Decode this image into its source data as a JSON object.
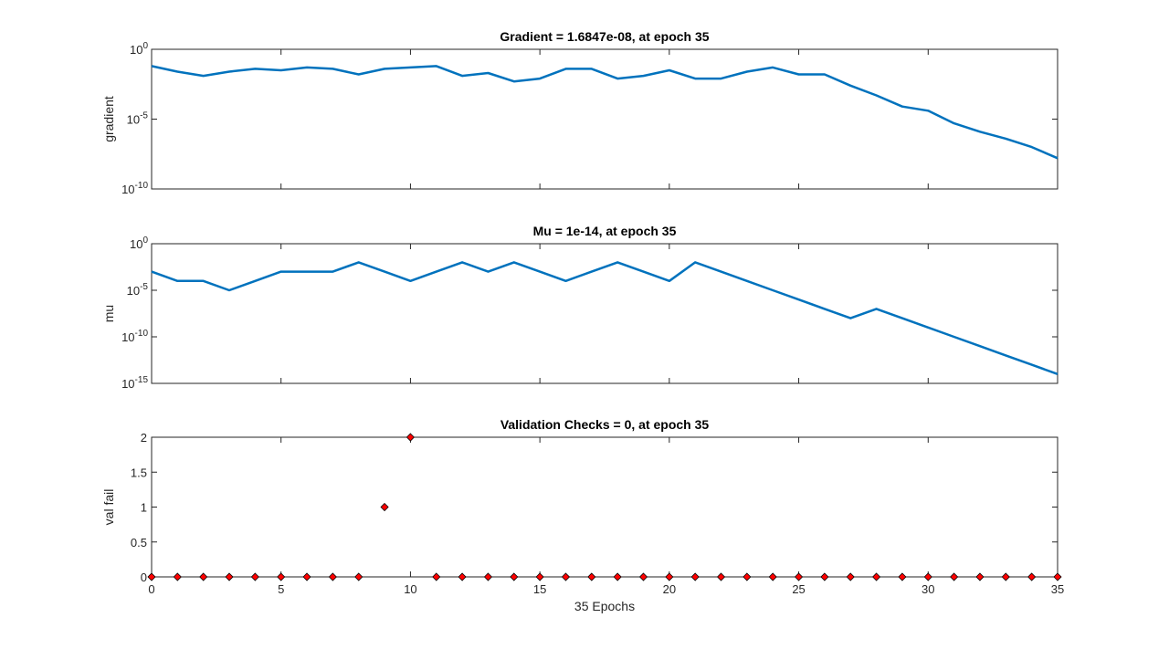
{
  "colors": {
    "line": "#0072BD",
    "marker_fill": "#FF0000",
    "marker_edge": "#000000",
    "axis": "#262626",
    "background": "#FFFFFF"
  },
  "xlabel": "35 Epochs",
  "chart_data": [
    {
      "type": "line",
      "title": "Gradient = 1.6847e-08, at epoch 35",
      "ylabel": "gradient",
      "yscale": "log",
      "ylim_exp": [
        -10,
        0
      ],
      "ytick_exps": [
        0,
        -5,
        -10
      ],
      "xlim": [
        0,
        35
      ],
      "x": [
        0,
        1,
        2,
        3,
        4,
        5,
        6,
        7,
        8,
        9,
        10,
        11,
        12,
        13,
        14,
        15,
        16,
        17,
        18,
        19,
        20,
        21,
        22,
        23,
        24,
        25,
        26,
        27,
        28,
        29,
        30,
        31,
        32,
        33,
        34,
        35
      ],
      "log10_values": [
        -1.2,
        -1.6,
        -1.9,
        -1.6,
        -1.4,
        -1.5,
        -1.3,
        -1.4,
        -1.8,
        -1.4,
        -1.3,
        -1.2,
        -1.9,
        -1.7,
        -2.3,
        -2.1,
        -1.4,
        -1.4,
        -2.1,
        -1.9,
        -1.5,
        -2.1,
        -2.1,
        -1.6,
        -1.3,
        -1.8,
        -1.8,
        -2.6,
        -3.3,
        -4.1,
        -4.4,
        -5.3,
        -5.9,
        -6.4,
        -7.0,
        -7.8
      ]
    },
    {
      "type": "line",
      "title": "Mu = 1e-14, at epoch 35",
      "ylabel": "mu",
      "yscale": "log",
      "ylim_exp": [
        -15,
        0
      ],
      "ytick_exps": [
        0,
        -5,
        -10,
        -15
      ],
      "xlim": [
        0,
        35
      ],
      "x": [
        0,
        1,
        2,
        3,
        4,
        5,
        6,
        7,
        8,
        9,
        10,
        11,
        12,
        13,
        14,
        15,
        16,
        17,
        18,
        19,
        20,
        21,
        22,
        23,
        24,
        25,
        26,
        27,
        28,
        29,
        30,
        31,
        32,
        33,
        34,
        35
      ],
      "log10_values": [
        -3,
        -4,
        -4,
        -5,
        -4,
        -3,
        -3,
        -3,
        -2,
        -3,
        -4,
        -3,
        -2,
        -3,
        -2,
        -3,
        -4,
        -3,
        -2,
        -3,
        -4,
        -2,
        -3,
        -4,
        -5,
        -6,
        -7,
        -8,
        -7,
        -8,
        -9,
        -10,
        -11,
        -12,
        -13,
        -14
      ]
    },
    {
      "type": "scatter",
      "title": "Validation Checks = 0, at epoch 35",
      "ylabel": "val fail",
      "ylim": [
        0,
        2
      ],
      "yticks": [
        "0",
        "0.5",
        "1",
        "1.5",
        "2"
      ],
      "ytick_values": [
        0,
        0.5,
        1,
        1.5,
        2
      ],
      "xlim": [
        0,
        35
      ],
      "x": [
        0,
        1,
        2,
        3,
        4,
        5,
        6,
        7,
        8,
        9,
        10,
        11,
        12,
        13,
        14,
        15,
        16,
        17,
        18,
        19,
        20,
        21,
        22,
        23,
        24,
        25,
        26,
        27,
        28,
        29,
        30,
        31,
        32,
        33,
        34,
        35
      ],
      "values": [
        0,
        0,
        0,
        0,
        0,
        0,
        0,
        0,
        0,
        1,
        2,
        0,
        0,
        0,
        0,
        0,
        0,
        0,
        0,
        0,
        0,
        0,
        0,
        0,
        0,
        0,
        0,
        0,
        0,
        0,
        0,
        0,
        0,
        0,
        0,
        0
      ],
      "xticks": [
        "0",
        "5",
        "10",
        "15",
        "20",
        "25",
        "30",
        "35"
      ],
      "xtick_values": [
        0,
        5,
        10,
        15,
        20,
        25,
        30,
        35
      ]
    }
  ]
}
